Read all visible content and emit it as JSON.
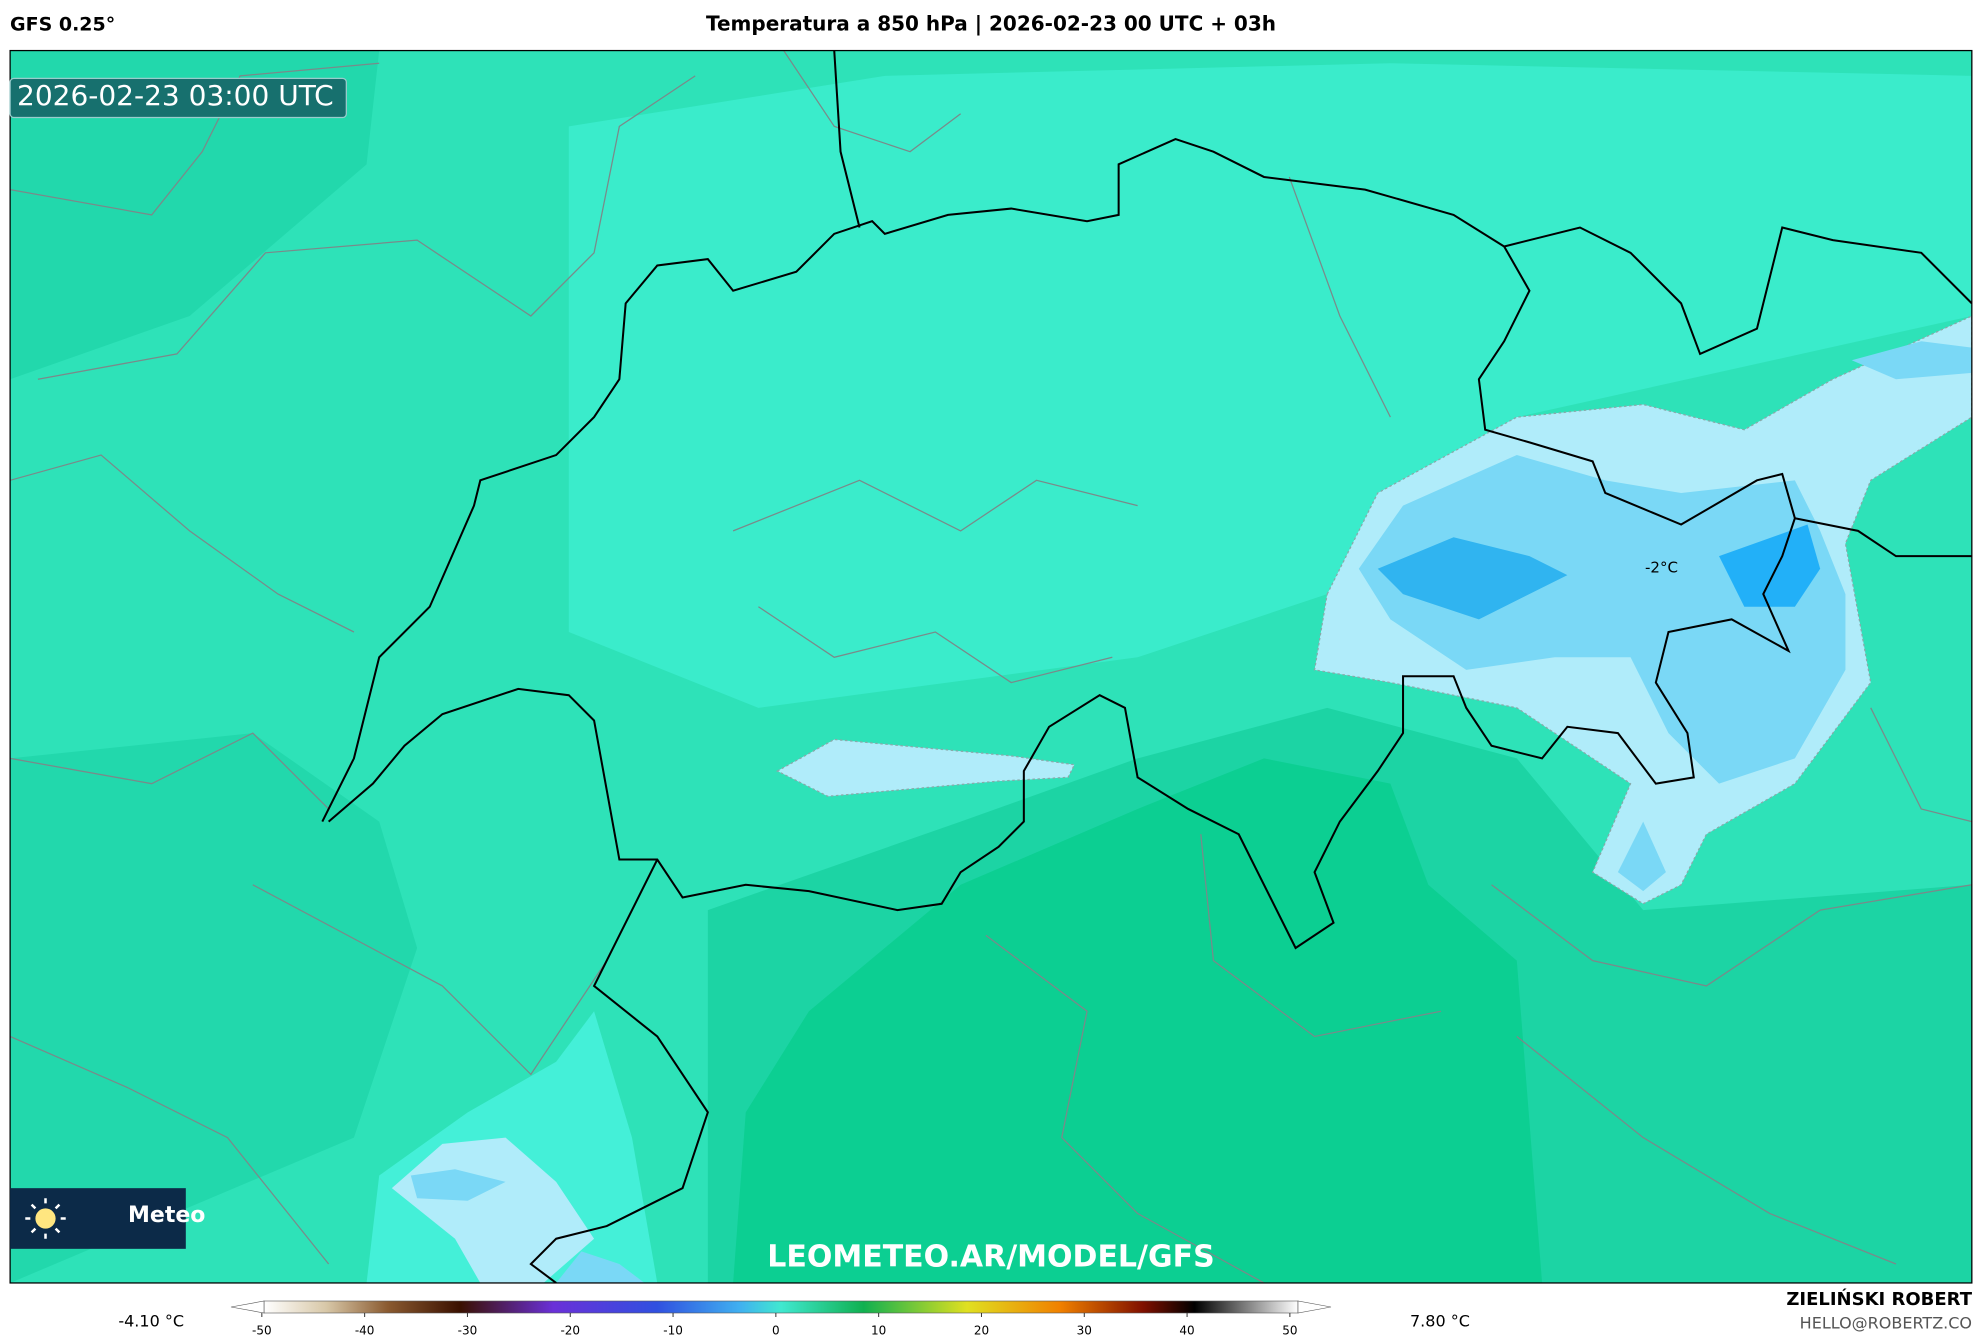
{
  "header": {
    "model": "GFS 0.25°",
    "title": "Temperatura a 850 hPa | 2026-02-23 00 UTC + 03h"
  },
  "map": {
    "valid_time": "2026-02-23 03:00 UTC",
    "contour_label": "-2°C",
    "watermark": "LEOMETEO.AR/MODEL/GFS",
    "logo_text": "Meteo"
  },
  "colorbar": {
    "min_label": "-4.10 °C",
    "max_label": "7.80 °C",
    "lim": [
      -53,
      54
    ],
    "ticks": [
      -50,
      -40,
      -30,
      -20,
      -10,
      0,
      10,
      20,
      30,
      40,
      50
    ]
  },
  "credit": {
    "author": "ZIELIŃSKI ROBERT",
    "email": "HELLO@ROBERTZ.CO"
  }
}
